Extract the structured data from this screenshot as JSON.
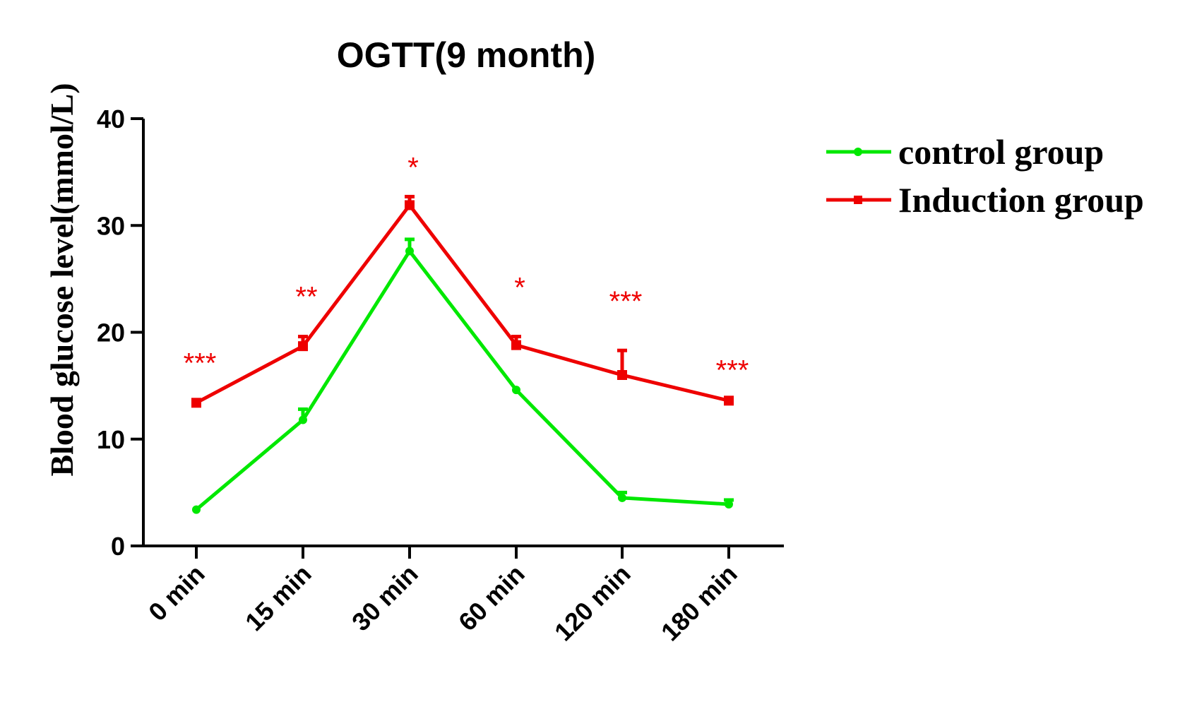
{
  "chart_data": {
    "type": "line",
    "title": "OGTT(9 month)",
    "xlabel": "",
    "ylabel": "Blood glucose level(mmol/L)",
    "ylim": [
      0,
      40
    ],
    "yticks": [
      "0",
      "10",
      "20",
      "30",
      "40"
    ],
    "categories": [
      "0 min",
      "15 min",
      "30 min",
      "60 min",
      "120 min",
      "180 min"
    ],
    "series": [
      {
        "name": "control group",
        "color": "#00e800",
        "marker": "circle",
        "values": [
          3.4,
          11.8,
          27.6,
          14.6,
          4.5,
          3.9
        ],
        "error_upper": [
          0,
          1.0,
          1.1,
          0,
          0.5,
          0.4
        ]
      },
      {
        "name": "Induction group",
        "color": "#ee0000",
        "marker": "square",
        "values": [
          13.4,
          18.7,
          31.9,
          18.8,
          16.0,
          13.6
        ],
        "error_upper": [
          0,
          0.9,
          0.8,
          0.8,
          2.3,
          0
        ]
      }
    ],
    "significance": [
      "***",
      "**",
      "*",
      "*",
      "***",
      "***"
    ],
    "significance_color": "#ee0000",
    "legend": "right",
    "grid": false
  }
}
